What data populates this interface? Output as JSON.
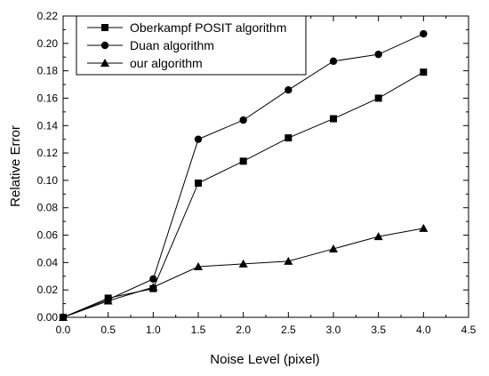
{
  "chart_data": {
    "type": "line",
    "title": "",
    "xlabel": "Noise Level (pixel)",
    "ylabel": "Relative Error",
    "xlim": [
      0.0,
      4.5
    ],
    "ylim": [
      0.0,
      0.22
    ],
    "xticks": [
      "0.0",
      "0.5",
      "1.0",
      "1.5",
      "2.0",
      "2.5",
      "3.0",
      "3.5",
      "4.0",
      "4.5"
    ],
    "yticks": [
      "0.00",
      "0.02",
      "0.04",
      "0.06",
      "0.08",
      "0.10",
      "0.12",
      "0.14",
      "0.16",
      "0.18",
      "0.20",
      "0.22"
    ],
    "grid": false,
    "legend_position": "top-left",
    "x": [
      0.0,
      0.5,
      1.0,
      1.5,
      2.0,
      2.5,
      3.0,
      3.5,
      4.0
    ],
    "series": [
      {
        "name": "Oberkampf POSIT algorithm",
        "marker": "square",
        "values": [
          0.0,
          0.014,
          0.021,
          0.098,
          0.114,
          0.131,
          0.145,
          0.16,
          0.179
        ]
      },
      {
        "name": "Duan algorithm",
        "marker": "circle",
        "values": [
          0.0,
          0.013,
          0.028,
          0.13,
          0.144,
          0.166,
          0.187,
          0.192,
          0.207
        ]
      },
      {
        "name": "our algorithm",
        "marker": "triangle",
        "values": [
          0.0,
          0.012,
          0.022,
          0.037,
          0.039,
          0.041,
          0.05,
          0.059,
          0.065
        ]
      }
    ]
  }
}
